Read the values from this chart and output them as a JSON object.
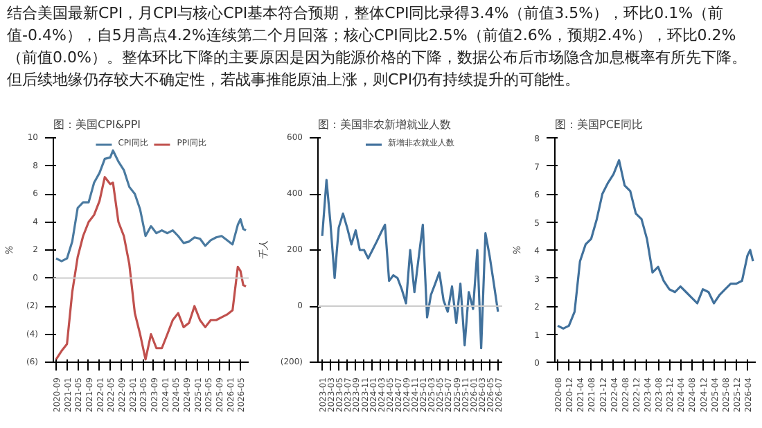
{
  "chart_data": [
    {
      "type": "other",
      "annotations": [
        "结合美国最新CPI，月CPI与核心CPI基本符合预期，整体CPI同比录得3.4%（前值3.5%），环比0.1%（前值-0.4%），自5月高点4.2%连续第二个月回落；核心CPI同比2.5%（前值2.6%，预期2.4%），环比0.2%（前值0.0%）。整体环比下降的主要原因是因为能源价格的下降，数据公布后市场隐含加息概率有所先下降。但后续地缘仍存较大不确定性，若战事推能原油上涨，则CPI仍有持续提升的可能性。"
      ]
    },
    {
      "type": "line",
      "title": "图：美国CPI&PPI",
      "ylabel": "%",
      "legend": "top",
      "x": [
        "2020-09",
        "2020-11",
        "2021-01",
        "2021-03",
        "2021-05",
        "2021-07",
        "2021-09",
        "2021-11",
        "2022-01",
        "2022-03",
        "2022-05",
        "2022-06",
        "2022-08",
        "2022-10",
        "2022-12",
        "2023-02",
        "2023-04",
        "2023-06",
        "2023-08",
        "2023-10",
        "2023-12",
        "2024-02",
        "2024-04",
        "2024-06",
        "2024-08",
        "2024-10",
        "2024-12",
        "2025-02",
        "2025-04",
        "2025-06",
        "2025-08",
        "2025-10",
        "2025-12",
        "2026-02",
        "2026-04",
        "2026-05",
        "2026-06",
        "2026-07"
      ],
      "series": [
        {
          "name": "CPI同比",
          "color": "#4a7aa0",
          "values": [
            1.4,
            1.2,
            1.4,
            2.6,
            5.0,
            5.4,
            5.4,
            6.8,
            7.5,
            8.5,
            8.6,
            9.1,
            8.3,
            7.7,
            6.5,
            6.0,
            4.9,
            3.0,
            3.7,
            3.2,
            3.4,
            3.2,
            3.4,
            3.0,
            2.5,
            2.6,
            2.9,
            2.8,
            2.3,
            2.7,
            2.9,
            3.0,
            2.7,
            2.4,
            3.8,
            4.2,
            3.5,
            3.4
          ]
        },
        {
          "name": "PPI同比",
          "color": "#c0504d",
          "values": [
            -5.8,
            -5.2,
            -4.7,
            -1.0,
            1.5,
            3.0,
            4.0,
            4.5,
            5.5,
            7.2,
            6.7,
            6.8,
            4.0,
            3.0,
            1.0,
            -2.5,
            -4.0,
            -5.8,
            -4.0,
            -5.0,
            -5.0,
            -4.0,
            -3.0,
            -2.5,
            -3.5,
            -3.2,
            -2.0,
            -3.0,
            -3.5,
            -3.0,
            -3.0,
            -2.8,
            -2.6,
            -2.3,
            0.8,
            0.5,
            -0.5,
            -0.6
          ]
        }
      ],
      "xlim": [
        "2020-08",
        "2026-08"
      ],
      "xticks": [
        {
          "value": "2020-09",
          "label": "2020-09"
        },
        {
          "value": "2021-01",
          "label": "2021-01"
        },
        {
          "value": "2021-05",
          "label": "2021-05"
        },
        {
          "value": "2021-09",
          "label": "2021-09"
        },
        {
          "value": "2022-01",
          "label": "2022-01"
        },
        {
          "value": "2022-05",
          "label": "2022-05"
        },
        {
          "value": "2022-09",
          "label": "2022-09"
        },
        {
          "value": "2023-01",
          "label": "2023-01"
        },
        {
          "value": "2023-05",
          "label": "2023-05"
        },
        {
          "value": "2023-09",
          "label": "2023-09"
        },
        {
          "value": "2024-01",
          "label": "2024-01"
        },
        {
          "value": "2024-05",
          "label": "2024-05"
        },
        {
          "value": "2024-09",
          "label": "2024-09"
        },
        {
          "value": "2025-01",
          "label": "2025-01"
        },
        {
          "value": "2025-05",
          "label": "2025-05"
        },
        {
          "value": "2025-09",
          "label": "2025-09"
        },
        {
          "value": "2026-01",
          "label": "2026-01"
        },
        {
          "value": "2026-05",
          "label": "2026-05"
        }
      ],
      "ylim": [
        -6,
        10
      ],
      "yticks": [
        {
          "value": -6,
          "label": "(6)"
        },
        {
          "value": -4,
          "label": "(4)"
        },
        {
          "value": -2,
          "label": "(2)"
        },
        0,
        2,
        4,
        6,
        8,
        10
      ]
    },
    {
      "type": "line",
      "title": "图：美国非农新增就业人数",
      "ylabel": "千人",
      "legend": "top",
      "x": [
        "2023-01",
        "2023-02",
        "2023-03",
        "2023-04",
        "2023-05",
        "2023-06",
        "2023-07",
        "2023-08",
        "2023-09",
        "2023-10",
        "2023-11",
        "2023-12",
        "2024-01",
        "2024-02",
        "2024-03",
        "2024-04",
        "2024-05",
        "2024-06",
        "2024-07",
        "2024-08",
        "2024-09",
        "2024-10",
        "2024-11",
        "2024-12",
        "2025-01",
        "2025-02",
        "2025-03",
        "2025-04",
        "2025-05",
        "2025-06",
        "2025-07",
        "2025-08",
        "2025-09",
        "2025-10",
        "2025-11",
        "2025-12",
        "2026-01",
        "2026-02",
        "2026-03",
        "2026-04",
        "2026-05",
        "2026-06",
        "2026-07"
      ],
      "series": [
        {
          "name": "新增非农就业人数",
          "color": "#41719c",
          "values": [
            250,
            450,
            300,
            100,
            280,
            330,
            280,
            220,
            270,
            200,
            200,
            170,
            200,
            230,
            260,
            290,
            90,
            110,
            100,
            60,
            10,
            200,
            50,
            170,
            290,
            -40,
            40,
            80,
            120,
            20,
            -20,
            70,
            -60,
            80,
            -140,
            50,
            -10,
            200,
            -150,
            260,
            180,
            80,
            -20
          ]
        }
      ],
      "xlim": [
        "2022-12",
        "2026-08"
      ],
      "xticks": [
        {
          "value": "2023-01",
          "label": "2023-01"
        },
        {
          "value": "2023-03",
          "label": "2023-03"
        },
        {
          "value": "2023-05",
          "label": "2023-05"
        },
        {
          "value": "2023-07",
          "label": "2023-07"
        },
        {
          "value": "2023-09",
          "label": "2023-09"
        },
        {
          "value": "2023-11",
          "label": "2023-11"
        },
        {
          "value": "2024-01",
          "label": "2024-01"
        },
        {
          "value": "2024-03",
          "label": "2024-03"
        },
        {
          "value": "2024-05",
          "label": "2024-05"
        },
        {
          "value": "2024-07",
          "label": "2024-07"
        },
        {
          "value": "2024-09",
          "label": "2024-09"
        },
        {
          "value": "2024-11",
          "label": "2024-11"
        },
        {
          "value": "2025-01",
          "label": "2025-01"
        },
        {
          "value": "2025-03",
          "label": "2025-03"
        },
        {
          "value": "2025-05",
          "label": "2025-05"
        },
        {
          "value": "2025-07",
          "label": "2025-07"
        },
        {
          "value": "2025-09",
          "label": "2025-09"
        },
        {
          "value": "2025-11",
          "label": "2025-11"
        },
        {
          "value": "2026-01",
          "label": "2026-01"
        },
        {
          "value": "2026-03",
          "label": "2026-03"
        },
        {
          "value": "2026-05",
          "label": "2026-05"
        },
        {
          "value": "2026-07",
          "label": "2026-07"
        }
      ],
      "ylim": [
        -200,
        600
      ],
      "yticks": [
        {
          "value": -200,
          "label": "(200)"
        },
        0,
        200,
        400,
        600
      ]
    },
    {
      "type": "line",
      "title": "图：美国PCE同比",
      "ylabel": "%",
      "x": [
        "2020-08",
        "2020-10",
        "2020-12",
        "2021-02",
        "2021-04",
        "2021-06",
        "2021-08",
        "2021-10",
        "2021-12",
        "2022-02",
        "2022-04",
        "2022-06",
        "2022-08",
        "2022-10",
        "2022-12",
        "2023-02",
        "2023-04",
        "2023-06",
        "2023-08",
        "2023-10",
        "2023-12",
        "2024-02",
        "2024-04",
        "2024-06",
        "2024-08",
        "2024-10",
        "2024-12",
        "2025-02",
        "2025-04",
        "2025-06",
        "2025-08",
        "2025-10",
        "2025-12",
        "2026-02",
        "2026-04",
        "2026-05",
        "2026-06"
      ],
      "series": [
        {
          "color": "#41719c",
          "values": [
            1.3,
            1.2,
            1.3,
            1.8,
            3.6,
            4.2,
            4.4,
            5.1,
            6.0,
            6.4,
            6.7,
            7.2,
            6.3,
            6.1,
            5.3,
            5.1,
            4.4,
            3.2,
            3.4,
            2.9,
            2.6,
            2.5,
            2.7,
            2.5,
            2.3,
            2.1,
            2.6,
            2.5,
            2.1,
            2.4,
            2.6,
            2.8,
            2.8,
            2.9,
            3.8,
            4.0,
            3.6
          ]
        }
      ],
      "xlim": [
        "2020-07",
        "2026-07"
      ],
      "xticks": [
        {
          "value": "2020-08",
          "label": "2020-08"
        },
        {
          "value": "2020-12",
          "label": "2020-12"
        },
        {
          "value": "2021-04",
          "label": "2021-04"
        },
        {
          "value": "2021-08",
          "label": "2021-08"
        },
        {
          "value": "2021-12",
          "label": "2021-12"
        },
        {
          "value": "2022-04",
          "label": "2022-04"
        },
        {
          "value": "2022-08",
          "label": "2022-08"
        },
        {
          "value": "2022-12",
          "label": "2022-12"
        },
        {
          "value": "2023-04",
          "label": "2023-04"
        },
        {
          "value": "2023-08",
          "label": "2023-08"
        },
        {
          "value": "2023-12",
          "label": "2023-12"
        },
        {
          "value": "2024-04",
          "label": "2024-04"
        },
        {
          "value": "2024-08",
          "label": "2024-08"
        },
        {
          "value": "2024-12",
          "label": "2024-12"
        },
        {
          "value": "2025-04",
          "label": "2025-04"
        },
        {
          "value": "2025-08",
          "label": "2025-08"
        },
        {
          "value": "2025-12",
          "label": "2025-12"
        },
        {
          "value": "2026-04",
          "label": "2026-04"
        }
      ],
      "ylim": [
        0,
        8
      ],
      "yticks": [
        0,
        1,
        2,
        3,
        4,
        5,
        6,
        7,
        8
      ]
    }
  ]
}
